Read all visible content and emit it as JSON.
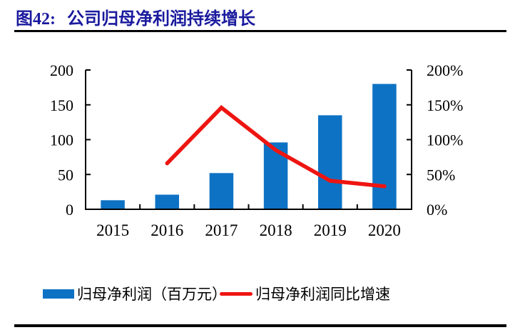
{
  "figure": {
    "label": "图42:",
    "title": "公司归母净利润持续增长"
  },
  "colors": {
    "title_navy": "#1A1A9E",
    "bar_blue": "#0E72C4",
    "line_red": "#EE1511",
    "axis_black": "#000000"
  },
  "chart_data": {
    "type": "bar",
    "combo": "bar+line",
    "title": "公司归母净利润持续增长",
    "categories": [
      "2015",
      "2016",
      "2017",
      "2018",
      "2019",
      "2020"
    ],
    "series": [
      {
        "name": "归母净利润（百万元）",
        "type": "bar",
        "axis": "left",
        "color": "#0E72C4",
        "values": [
          13,
          21,
          52,
          96,
          135,
          180
        ]
      },
      {
        "name": "归母净利润同比增速",
        "type": "line",
        "axis": "right",
        "color": "#EE1511",
        "unit": "%",
        "values": [
          null,
          66,
          146,
          85,
          41,
          33
        ]
      }
    ],
    "left_axis": {
      "min": 0,
      "max": 200,
      "tick_values": [
        0,
        50,
        100,
        150,
        200
      ],
      "tick_labels": [
        "0",
        "50",
        "100",
        "150",
        "200"
      ]
    },
    "right_axis": {
      "min": 0,
      "max": 200,
      "tick_values": [
        0,
        50,
        100,
        150,
        200
      ],
      "tick_labels": [
        "0%",
        "50%",
        "100%",
        "150%",
        "200%"
      ]
    },
    "grid": false,
    "legend_position": "bottom"
  }
}
